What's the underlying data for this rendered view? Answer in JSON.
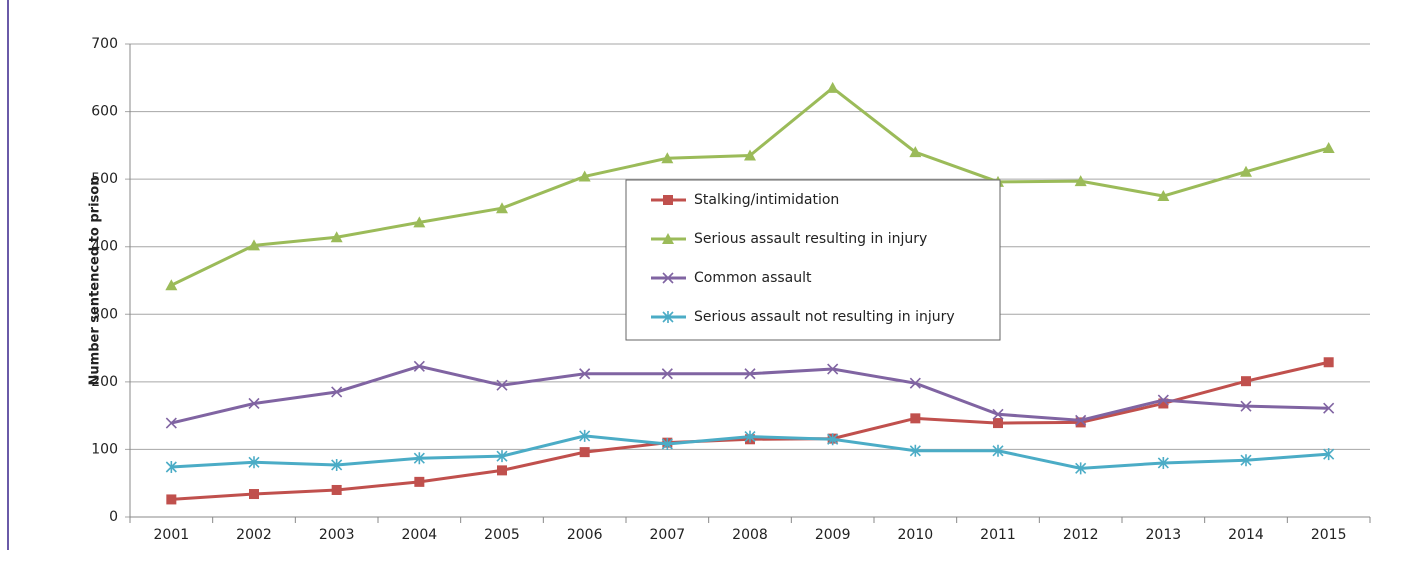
{
  "chart_data": {
    "type": "line",
    "y_label": "Number sentenced to prison",
    "categories": [
      "2001",
      "2002",
      "2003",
      "2004",
      "2005",
      "2006",
      "2007",
      "2008",
      "2009",
      "2010",
      "2011",
      "2012",
      "2013",
      "2014",
      "2015"
    ],
    "series": [
      {
        "name": "Stalking/intimidation",
        "color": "#c0504d",
        "marker": "square",
        "values": [
          26,
          34,
          40,
          52,
          69,
          96,
          110,
          115,
          116,
          146,
          139,
          140,
          168,
          201,
          229
        ]
      },
      {
        "name": "Serious assault resulting in injury",
        "color": "#9bbb59",
        "marker": "triangle",
        "values": [
          343,
          402,
          414,
          436,
          457,
          504,
          531,
          535,
          635,
          540,
          496,
          497,
          475,
          511,
          546
        ]
      },
      {
        "name": "Common assault",
        "color": "#8064a2",
        "marker": "x",
        "values": [
          139,
          168,
          185,
          223,
          195,
          212,
          212,
          212,
          219,
          198,
          152,
          143,
          173,
          164,
          161
        ]
      },
      {
        "name": "Serious assault not resulting in injury",
        "color": "#4bacc6",
        "marker": "star",
        "values": [
          74,
          81,
          77,
          87,
          90,
          120,
          108,
          119,
          115,
          98,
          98,
          72,
          80,
          84,
          93
        ]
      }
    ],
    "ylim": [
      0,
      700
    ],
    "yticks": [
      0,
      100,
      200,
      300,
      400,
      500,
      600,
      700
    ],
    "grid": true
  }
}
